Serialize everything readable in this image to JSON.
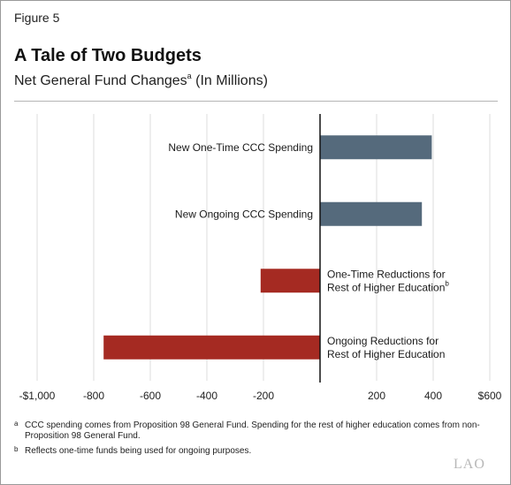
{
  "figure_label": "Figure 5",
  "title": "A Tale of Two Budgets",
  "subtitle": "Net General Fund Changes",
  "subtitle_sup": "a",
  "subtitle_suffix": " (In Millions)",
  "chart_data": {
    "type": "bar",
    "orientation": "horizontal",
    "xlim": [
      -1000,
      600
    ],
    "xticks": [
      -1000,
      -800,
      -600,
      -400,
      -200,
      200,
      400,
      600
    ],
    "xtick_labels": [
      "-$1,000",
      "-800",
      "-600",
      "-400",
      "-200",
      "200",
      "400",
      "$600"
    ],
    "grid": true,
    "bars": [
      {
        "label_lines": [
          "New One-Time CCC Spending"
        ],
        "sup": "",
        "value": 395,
        "color": "#556a7c"
      },
      {
        "label_lines": [
          "New Ongoing CCC Spending"
        ],
        "sup": "",
        "value": 360,
        "color": "#556a7c"
      },
      {
        "label_lines": [
          "One-Time Reductions for",
          "Rest of Higher Education"
        ],
        "sup": "b",
        "value": -210,
        "color": "#a52a22"
      },
      {
        "label_lines": [
          "Ongoing Reductions for",
          "Rest of Higher Education"
        ],
        "sup": "",
        "value": -765,
        "color": "#a52a22"
      }
    ]
  },
  "footnotes": [
    {
      "mark": "a",
      "text": "CCC spending comes from Proposition 98 General Fund. Spending for the rest of higher education comes from non-Proposition 98 General Fund."
    },
    {
      "mark": "b",
      "text": "Reflects one-time funds being used for ongoing purposes."
    }
  ],
  "logo": "LAO"
}
